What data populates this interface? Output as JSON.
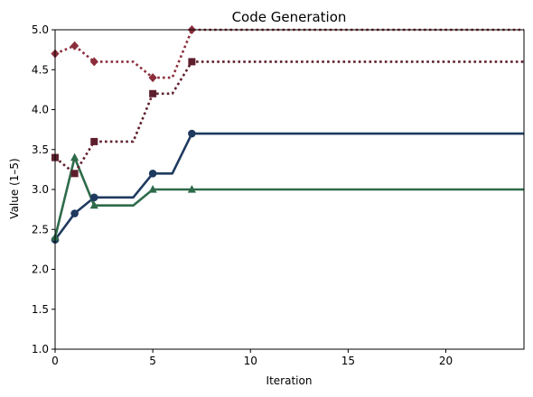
{
  "chart_data": {
    "type": "line",
    "title": "Code Generation",
    "xlabel": "Iteration",
    "ylabel": "Value (1–5)",
    "xlim": [
      0,
      24
    ],
    "ylim": [
      1.0,
      5.0
    ],
    "xticks": [
      0,
      5,
      10,
      15,
      20
    ],
    "xtick_labels": [
      "0",
      "5",
      "10",
      "15",
      "20"
    ],
    "yticks": [
      1.0,
      1.5,
      2.0,
      2.5,
      3.0,
      3.5,
      4.0,
      4.5,
      5.0
    ],
    "ytick_labels": [
      "1.0",
      "1.5",
      "2.0",
      "2.5",
      "3.0",
      "3.5",
      "4.0",
      "4.5",
      "5.0"
    ],
    "grid": false,
    "series": [
      {
        "color": "#1f3a5f",
        "line_style": "solid",
        "marker": "circle",
        "x": [
          0,
          1,
          2,
          3,
          4,
          5,
          6,
          7,
          8,
          9,
          10,
          11,
          12,
          13,
          14,
          15,
          16,
          17,
          18,
          19,
          20,
          21,
          22,
          23,
          24
        ],
        "y": [
          2.37,
          2.7,
          2.9,
          2.9,
          2.9,
          3.2,
          3.2,
          3.7,
          3.7,
          3.7,
          3.7,
          3.7,
          3.7,
          3.7,
          3.7,
          3.7,
          3.7,
          3.7,
          3.7,
          3.7,
          3.7,
          3.7,
          3.7,
          3.7,
          3.7
        ],
        "marker_x": [
          0,
          1,
          2,
          5,
          7
        ]
      },
      {
        "color": "#2e6b4a",
        "line_style": "solid",
        "marker": "triangle",
        "x": [
          0,
          1,
          2,
          3,
          4,
          5,
          6,
          7,
          8,
          9,
          10,
          11,
          12,
          13,
          14,
          15,
          16,
          17,
          18,
          19,
          20,
          21,
          22,
          23,
          24
        ],
        "y": [
          2.4,
          3.4,
          2.8,
          2.8,
          2.8,
          3.0,
          3.0,
          3.0,
          3.0,
          3.0,
          3.0,
          3.0,
          3.0,
          3.0,
          3.0,
          3.0,
          3.0,
          3.0,
          3.0,
          3.0,
          3.0,
          3.0,
          3.0,
          3.0,
          3.0
        ],
        "marker_x": [
          0,
          1,
          2,
          5,
          7
        ]
      },
      {
        "color": "#5e1f2c",
        "line_style": "dotted",
        "marker": "square",
        "x": [
          0,
          1,
          2,
          3,
          4,
          5,
          6,
          7,
          8,
          9,
          10,
          11,
          12,
          13,
          14,
          15,
          16,
          17,
          18,
          19,
          20,
          21,
          22,
          23,
          24
        ],
        "y": [
          3.4,
          3.2,
          3.6,
          3.6,
          3.6,
          4.2,
          4.2,
          4.6,
          4.6,
          4.6,
          4.6,
          4.6,
          4.6,
          4.6,
          4.6,
          4.6,
          4.6,
          4.6,
          4.6,
          4.6,
          4.6,
          4.6,
          4.6,
          4.6,
          4.6
        ],
        "marker_x": [
          0,
          1,
          2,
          5,
          7
        ]
      },
      {
        "color": "#8b2e3c",
        "line_style": "dotted",
        "marker": "diamond",
        "x": [
          0,
          1,
          2,
          3,
          4,
          5,
          6,
          7,
          8,
          9,
          10,
          11,
          12,
          13,
          14,
          15,
          16,
          17,
          18,
          19,
          20,
          21,
          22,
          23,
          24
        ],
        "y": [
          4.7,
          4.8,
          4.6,
          4.6,
          4.6,
          4.4,
          4.4,
          5.0,
          5.0,
          5.0,
          5.0,
          5.0,
          5.0,
          5.0,
          5.0,
          5.0,
          5.0,
          5.0,
          5.0,
          5.0,
          5.0,
          5.0,
          5.0,
          5.0,
          5.0
        ],
        "marker_x": [
          0,
          1,
          2,
          5,
          7
        ]
      }
    ]
  }
}
